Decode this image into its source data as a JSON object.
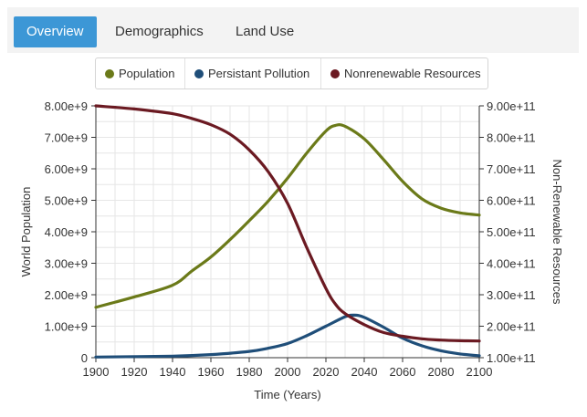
{
  "tabs": [
    {
      "label": "Overview",
      "active": true
    },
    {
      "label": "Demographics",
      "active": false
    },
    {
      "label": "Land Use",
      "active": false
    }
  ],
  "legend": [
    {
      "label": "Population",
      "color": "#6b7a19"
    },
    {
      "label": "Persistant Pollution",
      "color": "#1f4e79"
    },
    {
      "label": "Nonrenewable Resources",
      "color": "#6b1a22"
    }
  ],
  "chart_data": {
    "type": "line",
    "xlabel": "Time (Years)",
    "ylabel_left": "World Population",
    "ylabel_right": "Non-Renewable Resources",
    "xlim": [
      1900,
      2100
    ],
    "ylim_left": [
      0,
      8000000000
    ],
    "ylim_right": [
      100000000000,
      900000000000
    ],
    "x_ticks": [
      1900,
      1920,
      1940,
      1960,
      1980,
      2000,
      2020,
      2040,
      2060,
      2080,
      2100
    ],
    "y_ticks_left": [
      "0",
      "1.00e+9",
      "2.00e+9",
      "3.00e+9",
      "4.00e+9",
      "5.00e+9",
      "6.00e+9",
      "7.00e+9",
      "8.00e+9"
    ],
    "y_ticks_right": [
      "1.00e+11",
      "2.00e+11",
      "3.00e+11",
      "4.00e+11",
      "5.00e+11",
      "6.00e+11",
      "7.00e+11",
      "8.00e+11",
      "9.00e+11"
    ],
    "grid": true,
    "series": [
      {
        "name": "Population",
        "axis": "left",
        "color": "#6b7a19",
        "x": [
          1900,
          1920,
          1940,
          1950,
          1960,
          1970,
          1980,
          1990,
          2000,
          2010,
          2020,
          2025,
          2030,
          2040,
          2050,
          2060,
          2070,
          2080,
          2090,
          2100
        ],
        "values": [
          1600000000.0,
          1930000000.0,
          2300000000.0,
          2750000000.0,
          3200000000.0,
          3750000000.0,
          4350000000.0,
          4980000000.0,
          5700000000.0,
          6500000000.0,
          7200000000.0,
          7380000000.0,
          7350000000.0,
          6950000000.0,
          6300000000.0,
          5600000000.0,
          5050000000.0,
          4750000000.0,
          4600000000.0,
          4530000000.0
        ]
      },
      {
        "name": "Persistant Pollution",
        "axis": "left",
        "color": "#1f4e79",
        "x": [
          1900,
          1940,
          1960,
          1980,
          1990,
          2000,
          2010,
          2020,
          2030,
          2035,
          2040,
          2050,
          2060,
          2070,
          2080,
          2090,
          2100
        ],
        "values": [
          20000000.0,
          50000000.0,
          100000000.0,
          200000000.0,
          300000000.0,
          450000000.0,
          700000000.0,
          1000000000.0,
          1300000000.0,
          1350000000.0,
          1280000000.0,
          970000000.0,
          620000000.0,
          380000000.0,
          220000000.0,
          120000000.0,
          60000000.0
        ]
      },
      {
        "name": "Nonrenewable Resources",
        "axis": "right",
        "color": "#6b1a22",
        "x": [
          1900,
          1920,
          1940,
          1950,
          1960,
          1970,
          1980,
          1990,
          2000,
          2010,
          2020,
          2025,
          2030,
          2040,
          2050,
          2060,
          2070,
          2080,
          2090,
          2100
        ],
        "values": [
          900000000000.0,
          890000000000.0,
          875000000000.0,
          860000000000.0,
          840000000000.0,
          810000000000.0,
          760000000000.0,
          690000000000.0,
          590000000000.0,
          450000000000.0,
          320000000000.0,
          270000000000.0,
          240000000000.0,
          205000000000.0,
          180000000000.0,
          168000000000.0,
          160000000000.0,
          156000000000.0,
          154000000000.0,
          153000000000.0
        ]
      }
    ]
  }
}
